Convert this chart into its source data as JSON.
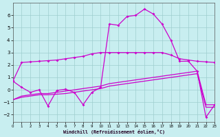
{
  "bg_color": "#c8eef0",
  "grid_color": "#9ecece",
  "line_color": "#cc00cc",
  "xlim": [
    0,
    23
  ],
  "ylim": [
    -2.6,
    7.0
  ],
  "xticks": [
    0,
    1,
    2,
    3,
    4,
    5,
    6,
    7,
    8,
    9,
    10,
    11,
    12,
    13,
    14,
    15,
    16,
    17,
    18,
    19,
    20,
    21,
    22,
    23
  ],
  "yticks": [
    -2,
    -1,
    0,
    1,
    2,
    3,
    4,
    5,
    6
  ],
  "xlabel": "Windchill (Refroidissement éolien,°C)",
  "line1_markers": true,
  "line1": {
    "x": [
      0,
      1,
      2,
      3,
      4,
      5,
      6,
      7,
      8,
      9,
      10,
      11,
      12,
      13,
      14,
      15,
      16,
      17,
      18,
      19,
      20,
      21,
      22,
      23
    ],
    "y": [
      0.7,
      2.2,
      2.25,
      2.3,
      2.35,
      2.4,
      2.5,
      2.6,
      2.7,
      2.9,
      3.0,
      3.0,
      3.0,
      3.0,
      3.0,
      3.0,
      3.0,
      3.0,
      2.8,
      2.5,
      2.4,
      2.3,
      2.25,
      2.2
    ]
  },
  "line2_markers": true,
  "line2": {
    "x": [
      0,
      1,
      2,
      3,
      4,
      5,
      6,
      7,
      8,
      9,
      10,
      11,
      12,
      13,
      14,
      15,
      16,
      17,
      18,
      19,
      20,
      21,
      22,
      23
    ],
    "y": [
      0.7,
      0.2,
      -0.2,
      0.0,
      -1.3,
      -0.05,
      0.05,
      -0.2,
      -1.2,
      -0.2,
      0.2,
      5.3,
      5.2,
      5.9,
      6.0,
      6.5,
      6.1,
      5.3,
      4.0,
      2.3,
      2.3,
      1.5,
      -2.2,
      -1.2
    ]
  },
  "line3": {
    "x": [
      0,
      1,
      2,
      3,
      4,
      5,
      6,
      7,
      8,
      9,
      10,
      11,
      12,
      13,
      14,
      15,
      16,
      17,
      18,
      19,
      20,
      21,
      22,
      23
    ],
    "y": [
      -0.8,
      -0.5,
      -0.4,
      -0.3,
      -0.3,
      -0.2,
      -0.1,
      0.0,
      0.1,
      0.2,
      0.3,
      0.5,
      0.6,
      0.7,
      0.8,
      0.9,
      1.0,
      1.1,
      1.2,
      1.3,
      1.4,
      1.5,
      -1.2,
      -1.2
    ]
  },
  "line4": {
    "x": [
      0,
      1,
      2,
      3,
      4,
      5,
      6,
      7,
      8,
      9,
      10,
      11,
      12,
      13,
      14,
      15,
      16,
      17,
      18,
      19,
      20,
      21,
      22,
      23
    ],
    "y": [
      -0.8,
      -0.6,
      -0.5,
      -0.4,
      -0.4,
      -0.35,
      -0.3,
      -0.2,
      -0.1,
      0.0,
      0.1,
      0.3,
      0.4,
      0.5,
      0.6,
      0.7,
      0.8,
      0.9,
      1.0,
      1.1,
      1.2,
      1.3,
      -1.4,
      -1.4
    ]
  }
}
